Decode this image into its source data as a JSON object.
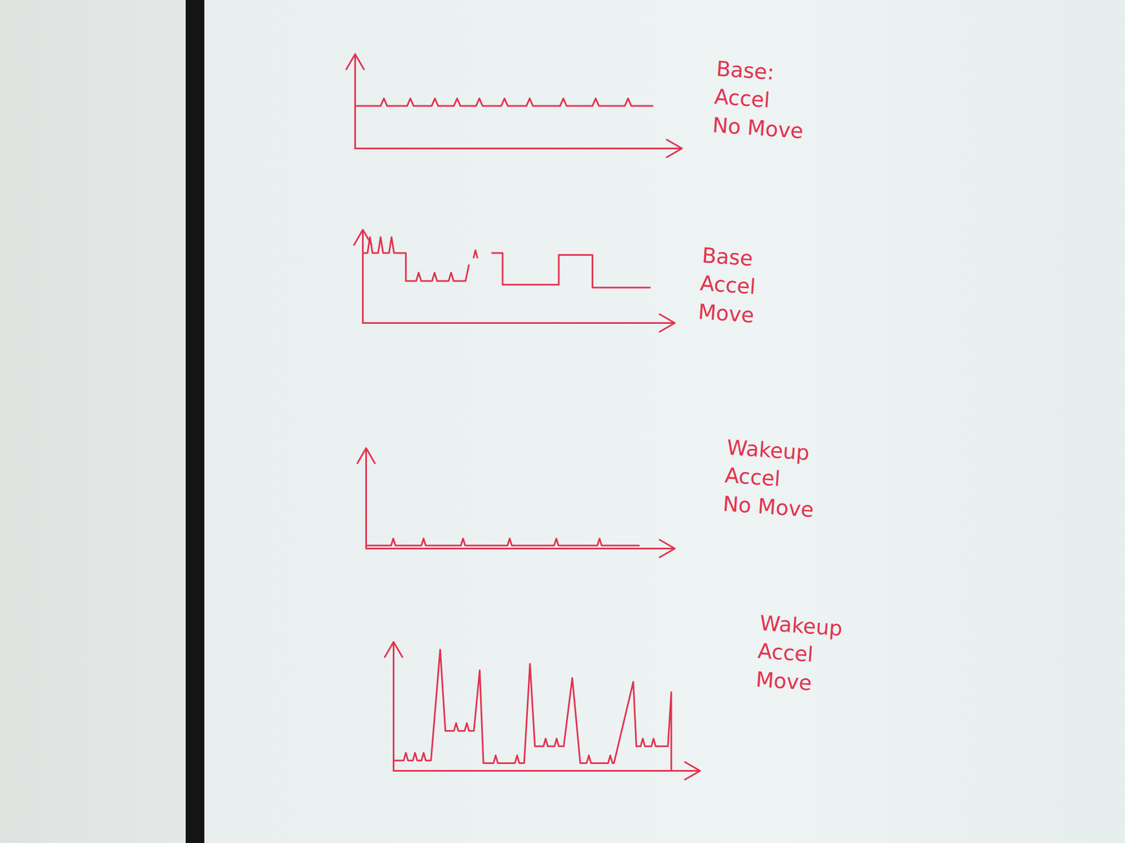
{
  "chart_data": [
    {
      "type": "line",
      "title": "Base:\nAccel\nNo Move",
      "color": "#e2334f",
      "tick_labels": false,
      "xlim": [
        0,
        100
      ],
      "ylim": [
        0,
        10
      ],
      "x": [
        0,
        7.8,
        8.8,
        9.8,
        15.9,
        16.9,
        17.9,
        23.4,
        24.4,
        25.4,
        30.2,
        31.2,
        32.2,
        37,
        38,
        39,
        44.7,
        45.7,
        46.7,
        52.4,
        53.4,
        54.4,
        62.7,
        63.7,
        64.7,
        72.6,
        73.6,
        74.6,
        82.5,
        83.5,
        84.5,
        91
      ],
      "y": [
        4.5,
        4.5,
        5.3,
        4.5,
        4.5,
        5.3,
        4.5,
        4.5,
        5.3,
        4.5,
        4.5,
        5.3,
        4.5,
        4.5,
        5.3,
        4.5,
        4.5,
        5.3,
        4.5,
        4.5,
        5.3,
        4.5,
        4.5,
        5.3,
        4.5,
        4.5,
        5.3,
        4.5,
        4.5,
        5.3,
        4.5,
        4.5
      ]
    },
    {
      "type": "line",
      "title": "Base\nAccel\nMove",
      "color": "#e2334f",
      "tick_labels": false,
      "xlim": [
        0,
        100
      ],
      "ylim": [
        0,
        10
      ],
      "x": [
        0,
        0,
        1.5,
        2.3,
        3.1,
        4.9,
        5.7,
        6.5,
        8.4,
        9.2,
        10,
        13.8,
        13.8,
        17.1,
        17.9,
        18.7,
        22.2,
        23,
        23.8,
        27.5,
        28.3,
        29.1,
        32.9,
        34,
        34.8,
        35.5,
        36.1,
        36.7,
        39,
        41.4,
        44.8,
        44.8,
        62.8,
        62.8,
        73.6,
        73.6,
        92
      ],
      "y": [
        0,
        7.5,
        7.5,
        9.2,
        7.5,
        7.5,
        9.2,
        7.5,
        7.5,
        9.2,
        7.5,
        7.5,
        4.5,
        4.5,
        5.4,
        4.5,
        4.5,
        5.4,
        4.5,
        4.5,
        5.4,
        4.5,
        4.5,
        6.2,
        null,
        7.0,
        7.8,
        7.0,
        null,
        7.5,
        7.5,
        4.1,
        4.1,
        7.3,
        7.3,
        3.8,
        3.8
      ]
    },
    {
      "type": "line",
      "title": "Wakeup\nAccel\nNo Move",
      "color": "#e2334f",
      "tick_labels": false,
      "xlim": [
        0,
        100
      ],
      "ylim": [
        0,
        10
      ],
      "x": [
        0,
        8.1,
        8.8,
        9.5,
        17.9,
        18.6,
        19.3,
        30.7,
        31.4,
        32.1,
        45.8,
        46.5,
        47.2,
        60.9,
        61.6,
        62.3,
        74.9,
        75.6,
        76.3,
        88.4
      ],
      "y": [
        0.3,
        0.3,
        1.0,
        0.3,
        0.3,
        1.0,
        0.3,
        0.3,
        1.0,
        0.3,
        0.3,
        1.0,
        0.3,
        0.3,
        1.0,
        0.3,
        0.3,
        1.0,
        0.3,
        0.3
      ]
    },
    {
      "type": "line",
      "title": "Wakeup\nAccel\nMove",
      "color": "#e2334f",
      "tick_labels": false,
      "xlim": [
        0,
        100
      ],
      "ylim": [
        0,
        10
      ],
      "x": [
        0,
        3.3,
        4.0,
        4.7,
        6.3,
        7.0,
        7.7,
        9.1,
        9.8,
        10.5,
        12.2,
        15.2,
        16.9,
        19.7,
        20.4,
        21.1,
        23.2,
        23.9,
        24.6,
        26.2,
        28.1,
        29.3,
        32.6,
        33.3,
        34,
        39.6,
        40.3,
        41,
        42.6,
        44.5,
        46.1,
        48.9,
        49.6,
        50.3,
        52.5,
        53.2,
        53.9,
        55.5,
        58.3,
        60.9,
        63,
        63.7,
        64.4,
        70,
        70.7,
        71.4,
        71.9,
        78.2,
        79.2,
        80.6,
        81.3,
        82,
        84.1,
        84.8,
        85.5,
        89.5,
        90.6,
        90.6,
        95.3
      ],
      "y": [
        0.8,
        0.8,
        1.4,
        0.8,
        0.8,
        1.4,
        0.8,
        0.8,
        1.4,
        0.8,
        0.8,
        9.4,
        3.1,
        3.1,
        3.7,
        3.1,
        3.1,
        3.7,
        3.1,
        3.1,
        7.8,
        0.6,
        0.6,
        1.2,
        0.6,
        0.6,
        1.2,
        0.6,
        0.6,
        8.3,
        1.9,
        1.9,
        2.5,
        1.9,
        1.9,
        2.5,
        1.9,
        1.9,
        7.2,
        0.6,
        0.6,
        1.2,
        0.6,
        0.6,
        1.2,
        0.6,
        0.6,
        6.9,
        1.9,
        1.9,
        2.5,
        1.9,
        1.9,
        2.5,
        1.9,
        1.9,
        6.1,
        0,
        0
      ]
    }
  ]
}
